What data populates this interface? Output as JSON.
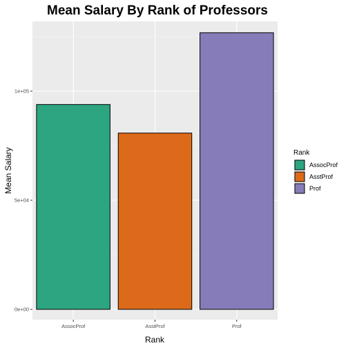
{
  "chart_data": {
    "type": "bar",
    "title": "Mean Salary By Rank of Professors",
    "xlabel": "Rank",
    "ylabel": "Mean Salary",
    "categories": [
      "AssocProf",
      "AsstProf",
      "Prof"
    ],
    "values": [
      93876,
      80776,
      126772
    ],
    "colors": [
      "#2ca580",
      "#dc6a1a",
      "#857cb9"
    ],
    "ylim": [
      0,
      133110
    ],
    "y_ticks": [
      0,
      50000,
      100000
    ],
    "y_tick_labels": [
      "0e+00",
      "5e+04",
      "1e+05"
    ],
    "grid": true,
    "legend": {
      "title": "Rank",
      "placement": "right",
      "entries": [
        "AssocProf",
        "AsstProf",
        "Prof"
      ]
    }
  }
}
